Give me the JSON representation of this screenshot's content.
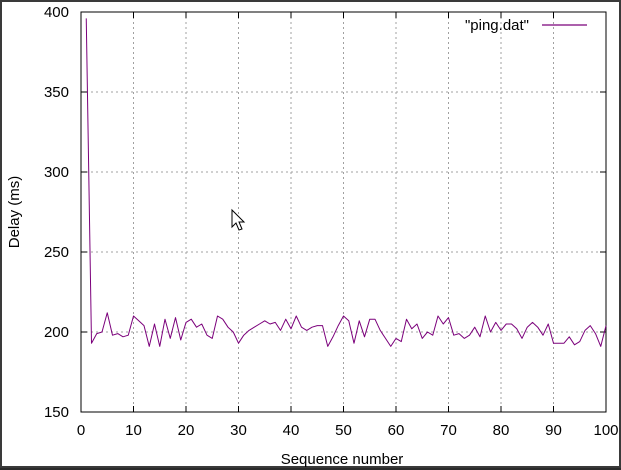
{
  "chart_data": {
    "type": "line",
    "title": "",
    "xlabel": "Sequence number",
    "ylabel": "Delay (ms)",
    "xlim": [
      0,
      100
    ],
    "ylim": [
      150,
      400
    ],
    "xticks": [
      0,
      10,
      20,
      30,
      40,
      50,
      60,
      70,
      80,
      90,
      100
    ],
    "yticks": [
      150,
      200,
      250,
      300,
      350,
      400
    ],
    "grid": true,
    "legend": "top-right",
    "series": [
      {
        "name": "\"ping.dat\"",
        "color": "#7b007b",
        "x": [
          1,
          2,
          3,
          4,
          5,
          6,
          7,
          8,
          9,
          10,
          11,
          12,
          13,
          14,
          15,
          16,
          17,
          18,
          19,
          20,
          21,
          22,
          23,
          24,
          25,
          26,
          27,
          28,
          29,
          30,
          31,
          32,
          33,
          34,
          35,
          36,
          37,
          38,
          39,
          40,
          41,
          42,
          43,
          44,
          45,
          46,
          47,
          48,
          49,
          50,
          51,
          52,
          53,
          54,
          55,
          56,
          57,
          58,
          59,
          60,
          61,
          62,
          63,
          64,
          65,
          66,
          67,
          68,
          69,
          70,
          71,
          72,
          73,
          74,
          75,
          76,
          77,
          78,
          79,
          80,
          81,
          82,
          83,
          84,
          85,
          86,
          87,
          88,
          89,
          90,
          91,
          92,
          93,
          94,
          95,
          96,
          97,
          98,
          99,
          100
        ],
        "y": [
          396,
          193,
          199,
          200,
          212,
          198,
          199,
          197,
          198,
          210,
          207,
          204,
          191,
          205,
          191,
          208,
          196,
          209,
          195,
          206,
          208,
          203,
          205,
          198,
          196,
          210,
          208,
          203,
          200,
          193,
          198,
          201,
          203,
          205,
          207,
          205,
          206,
          201,
          208,
          202,
          210,
          203,
          201,
          203,
          204,
          204,
          191,
          197,
          204,
          210,
          207,
          193,
          207,
          197,
          208,
          208,
          201,
          196,
          191,
          196,
          194,
          208,
          202,
          205,
          196,
          200,
          198,
          210,
          205,
          209,
          198,
          199,
          196,
          198,
          203,
          197,
          210,
          200,
          206,
          201,
          205,
          205,
          202,
          196,
          203,
          206,
          203,
          198,
          205,
          193,
          193,
          193,
          197,
          192,
          194,
          201,
          204,
          199,
          191,
          204
        ]
      }
    ]
  }
}
